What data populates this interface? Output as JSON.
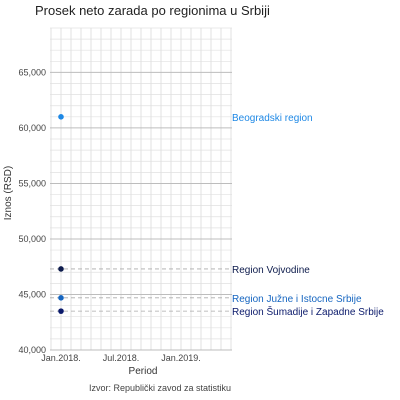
{
  "chart_data": {
    "type": "scatter",
    "title": "Prosek neto zarada po regionima u Srbiji",
    "xlabel": "Period",
    "ylabel": "Iznos (RSD)",
    "caption": "Izvor: Republički zavod za statistiku",
    "x_ticks": [
      "Jan.2018.",
      "Jul.2018.",
      "Jan.2019."
    ],
    "y_ticks": [
      "40,000",
      "45,000",
      "50,000",
      "55,000",
      "60,000",
      "65,000"
    ],
    "ylim": [
      40000,
      69000
    ],
    "grid": true,
    "series": [
      {
        "name": "Beogradski region",
        "x": "Jan.2018.",
        "y": 61000,
        "color": "#1e88e5"
      },
      {
        "name": "Region Vojvodine",
        "x": "Jan.2018.",
        "y": 47300,
        "color": "#0d1b4c"
      },
      {
        "name": "Region Južne i Istocne Srbije",
        "x": "Jan.2018.",
        "y": 44700,
        "color": "#1565c0"
      },
      {
        "name": "Region Šumadije i Zapadne Srbije",
        "x": "Jan.2018.",
        "y": 43500,
        "color": "#0b1a6b"
      }
    ]
  }
}
